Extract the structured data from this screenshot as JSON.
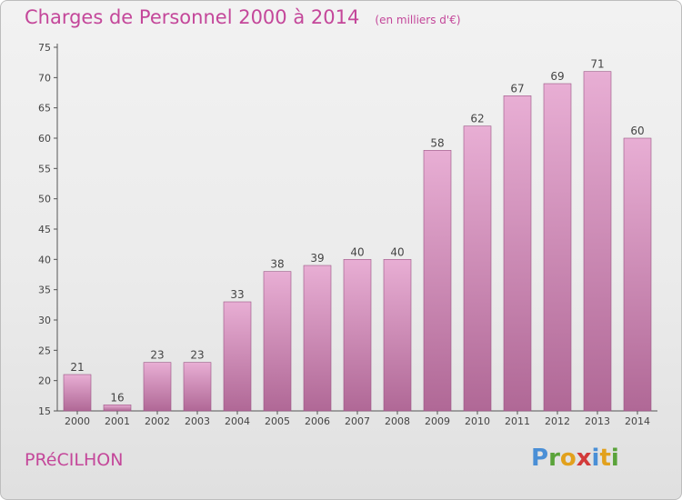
{
  "title": "Charges de Personnel 2000 à 2014",
  "subtitle": "(en milliers d'€)",
  "commune": "PRéCILHON",
  "logo": {
    "letters": [
      "P",
      "r",
      "o",
      "x",
      "i",
      "t",
      "i"
    ],
    "colors": [
      "#4a8fd6",
      "#5aa33a",
      "#e2a11d",
      "#d23a3a",
      "#4a8fd6",
      "#e2a11d",
      "#5aa33a"
    ]
  },
  "colors": {
    "accent": "#c4479a",
    "bar_top": "#e8aed4",
    "bar_bottom": "#b06896",
    "bar_edge": "#9a5584"
  },
  "chart_data": {
    "type": "bar",
    "title": "Charges de Personnel 2000 à 2014",
    "subtitle": "(en milliers d'€)",
    "categories": [
      "2000",
      "2001",
      "2002",
      "2003",
      "2004",
      "2005",
      "2006",
      "2007",
      "2008",
      "2009",
      "2010",
      "2011",
      "2012",
      "2013",
      "2014"
    ],
    "values": [
      21,
      16,
      23,
      23,
      33,
      38,
      39,
      40,
      40,
      58,
      62,
      67,
      69,
      71,
      60
    ],
    "ylim": [
      15,
      75
    ],
    "yticks": [
      15,
      20,
      25,
      30,
      35,
      40,
      45,
      50,
      55,
      60,
      65,
      70,
      75
    ],
    "grid": false,
    "data_labels": true
  }
}
